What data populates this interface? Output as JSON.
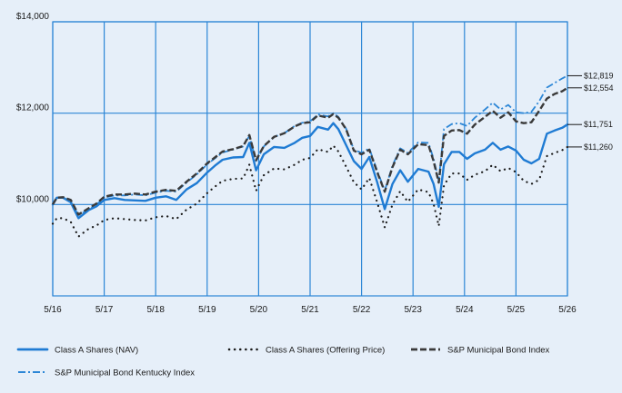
{
  "chart_data": {
    "type": "line",
    "title": "",
    "xlabel": "",
    "ylabel": "",
    "ylim": [
      8000,
      14000
    ],
    "y_ticks": [
      {
        "value": 14000,
        "label": "$14,000"
      },
      {
        "value": 12000,
        "label": "$12,000"
      },
      {
        "value": 10000,
        "label": "$10,000"
      }
    ],
    "x_range": [
      0,
      10
    ],
    "x_tick_labels": [
      "5/16",
      "5/17",
      "5/18",
      "5/19",
      "5/20",
      "5/21",
      "5/22",
      "5/23",
      "5/24",
      "5/25",
      "5/26"
    ],
    "grid": true,
    "legend_position": "bottom",
    "colors": {
      "background": "#E6EFF9",
      "grid": "#2C86D6",
      "class_a_nav": "#1F7BD3",
      "offering_price": "#1a1a1a",
      "municipal_index": "#3A3A3A",
      "kentucky_index": "#2C86D6",
      "leader": "#1a1a1a"
    },
    "series": [
      {
        "name": "Class A Shares (NAV)",
        "style": "solid",
        "end_label": "$11,751",
        "points": [
          [
            0,
            10000
          ],
          [
            0.08,
            10150
          ],
          [
            0.2,
            10150
          ],
          [
            0.35,
            10050
          ],
          [
            0.5,
            9700
          ],
          [
            0.7,
            9880
          ],
          [
            0.85,
            9960
          ],
          [
            1.0,
            10100
          ],
          [
            1.2,
            10140
          ],
          [
            1.4,
            10100
          ],
          [
            1.6,
            10090
          ],
          [
            1.8,
            10080
          ],
          [
            2.0,
            10150
          ],
          [
            2.2,
            10180
          ],
          [
            2.4,
            10100
          ],
          [
            2.6,
            10330
          ],
          [
            2.8,
            10470
          ],
          [
            3.0,
            10700
          ],
          [
            3.15,
            10850
          ],
          [
            3.3,
            10980
          ],
          [
            3.5,
            11030
          ],
          [
            3.7,
            11040
          ],
          [
            3.82,
            11350
          ],
          [
            3.95,
            10750
          ],
          [
            4.1,
            11100
          ],
          [
            4.3,
            11260
          ],
          [
            4.5,
            11240
          ],
          [
            4.7,
            11350
          ],
          [
            4.85,
            11460
          ],
          [
            5.0,
            11500
          ],
          [
            5.15,
            11700
          ],
          [
            5.35,
            11640
          ],
          [
            5.45,
            11780
          ],
          [
            5.55,
            11650
          ],
          [
            5.7,
            11300
          ],
          [
            5.85,
            10950
          ],
          [
            6.0,
            10780
          ],
          [
            6.15,
            11040
          ],
          [
            6.3,
            10500
          ],
          [
            6.45,
            9900
          ],
          [
            6.6,
            10450
          ],
          [
            6.75,
            10750
          ],
          [
            6.9,
            10500
          ],
          [
            7.1,
            10780
          ],
          [
            7.3,
            10720
          ],
          [
            7.4,
            10450
          ],
          [
            7.5,
            9950
          ],
          [
            7.6,
            10880
          ],
          [
            7.75,
            11150
          ],
          [
            7.9,
            11150
          ],
          [
            8.05,
            11000
          ],
          [
            8.2,
            11120
          ],
          [
            8.4,
            11200
          ],
          [
            8.55,
            11350
          ],
          [
            8.7,
            11200
          ],
          [
            8.85,
            11270
          ],
          [
            9.0,
            11180
          ],
          [
            9.15,
            10980
          ],
          [
            9.3,
            10900
          ],
          [
            9.45,
            11000
          ],
          [
            9.6,
            11550
          ],
          [
            9.75,
            11620
          ],
          [
            9.9,
            11680
          ],
          [
            10.0,
            11751
          ]
        ]
      },
      {
        "name": "Class A Shares (Offering Price)",
        "style": "dotted",
        "end_label": "$11,260",
        "points": [
          [
            0,
            9580
          ],
          [
            0.08,
            9700
          ],
          [
            0.2,
            9700
          ],
          [
            0.35,
            9620
          ],
          [
            0.5,
            9300
          ],
          [
            0.7,
            9470
          ],
          [
            0.85,
            9540
          ],
          [
            1.0,
            9660
          ],
          [
            1.2,
            9700
          ],
          [
            1.4,
            9680
          ],
          [
            1.6,
            9660
          ],
          [
            1.8,
            9650
          ],
          [
            2.0,
            9720
          ],
          [
            2.2,
            9750
          ],
          [
            2.4,
            9680
          ],
          [
            2.6,
            9890
          ],
          [
            2.8,
            10020
          ],
          [
            3.0,
            10250
          ],
          [
            3.15,
            10390
          ],
          [
            3.3,
            10520
          ],
          [
            3.5,
            10560
          ],
          [
            3.7,
            10570
          ],
          [
            3.82,
            10870
          ],
          [
            3.95,
            10300
          ],
          [
            4.1,
            10640
          ],
          [
            4.3,
            10790
          ],
          [
            4.5,
            10770
          ],
          [
            4.7,
            10870
          ],
          [
            4.85,
            10980
          ],
          [
            5.0,
            11020
          ],
          [
            5.15,
            11210
          ],
          [
            5.35,
            11150
          ],
          [
            5.45,
            11290
          ],
          [
            5.55,
            11160
          ],
          [
            5.7,
            10830
          ],
          [
            5.85,
            10490
          ],
          [
            6.0,
            10330
          ],
          [
            6.15,
            10580
          ],
          [
            6.3,
            10060
          ],
          [
            6.45,
            9500
          ],
          [
            6.6,
            10000
          ],
          [
            6.75,
            10290
          ],
          [
            6.9,
            10060
          ],
          [
            7.1,
            10330
          ],
          [
            7.3,
            10270
          ],
          [
            7.4,
            10010
          ],
          [
            7.5,
            9530
          ],
          [
            7.6,
            10420
          ],
          [
            7.75,
            10680
          ],
          [
            7.9,
            10680
          ],
          [
            8.05,
            10540
          ],
          [
            8.2,
            10650
          ],
          [
            8.4,
            10730
          ],
          [
            8.55,
            10870
          ],
          [
            8.7,
            10730
          ],
          [
            8.85,
            10800
          ],
          [
            9.0,
            10710
          ],
          [
            9.15,
            10520
          ],
          [
            9.3,
            10450
          ],
          [
            9.45,
            10540
          ],
          [
            9.6,
            11060
          ],
          [
            9.75,
            11130
          ],
          [
            9.9,
            11190
          ],
          [
            10.0,
            11260
          ]
        ]
      },
      {
        "name": "S&P Municipal Bond Index",
        "style": "dashed",
        "end_label": "$12,554",
        "points": [
          [
            0,
            10000
          ],
          [
            0.08,
            10150
          ],
          [
            0.2,
            10160
          ],
          [
            0.35,
            10100
          ],
          [
            0.5,
            9780
          ],
          [
            0.7,
            9920
          ],
          [
            0.85,
            10020
          ],
          [
            1.0,
            10170
          ],
          [
            1.2,
            10220
          ],
          [
            1.4,
            10220
          ],
          [
            1.6,
            10240
          ],
          [
            1.8,
            10220
          ],
          [
            2.0,
            10280
          ],
          [
            2.2,
            10320
          ],
          [
            2.4,
            10300
          ],
          [
            2.6,
            10500
          ],
          [
            2.8,
            10680
          ],
          [
            3.0,
            10900
          ],
          [
            3.15,
            11030
          ],
          [
            3.3,
            11160
          ],
          [
            3.5,
            11210
          ],
          [
            3.7,
            11280
          ],
          [
            3.82,
            11520
          ],
          [
            3.95,
            10970
          ],
          [
            4.1,
            11280
          ],
          [
            4.3,
            11480
          ],
          [
            4.5,
            11560
          ],
          [
            4.7,
            11710
          ],
          [
            4.85,
            11780
          ],
          [
            5.0,
            11800
          ],
          [
            5.15,
            11950
          ],
          [
            5.35,
            11900
          ],
          [
            5.45,
            11980
          ],
          [
            5.55,
            11900
          ],
          [
            5.7,
            11650
          ],
          [
            5.85,
            11180
          ],
          [
            6.0,
            11100
          ],
          [
            6.15,
            11200
          ],
          [
            6.3,
            10720
          ],
          [
            6.45,
            10280
          ],
          [
            6.6,
            10820
          ],
          [
            6.75,
            11200
          ],
          [
            6.9,
            11100
          ],
          [
            7.1,
            11320
          ],
          [
            7.3,
            11300
          ],
          [
            7.4,
            10950
          ],
          [
            7.5,
            10480
          ],
          [
            7.6,
            11500
          ],
          [
            7.75,
            11620
          ],
          [
            7.9,
            11630
          ],
          [
            8.05,
            11550
          ],
          [
            8.2,
            11750
          ],
          [
            8.4,
            11920
          ],
          [
            8.55,
            12050
          ],
          [
            8.7,
            11900
          ],
          [
            8.85,
            12020
          ],
          [
            9.0,
            11820
          ],
          [
            9.15,
            11780
          ],
          [
            9.3,
            11800
          ],
          [
            9.45,
            12050
          ],
          [
            9.6,
            12320
          ],
          [
            9.75,
            12420
          ],
          [
            9.9,
            12480
          ],
          [
            10.0,
            12554
          ]
        ]
      },
      {
        "name": "S&P Municipal Bond Kentucky Index",
        "style": "dash-dot",
        "end_label": "$12,819",
        "points": [
          [
            0,
            10000
          ],
          [
            0.08,
            10140
          ],
          [
            0.2,
            10150
          ],
          [
            0.35,
            10080
          ],
          [
            0.5,
            9760
          ],
          [
            0.7,
            9900
          ],
          [
            0.85,
            10000
          ],
          [
            1.0,
            10150
          ],
          [
            1.2,
            10200
          ],
          [
            1.4,
            10200
          ],
          [
            1.6,
            10220
          ],
          [
            1.8,
            10200
          ],
          [
            2.0,
            10260
          ],
          [
            2.2,
            10300
          ],
          [
            2.4,
            10280
          ],
          [
            2.6,
            10480
          ],
          [
            2.8,
            10660
          ],
          [
            3.0,
            10880
          ],
          [
            3.15,
            11010
          ],
          [
            3.3,
            11140
          ],
          [
            3.5,
            11200
          ],
          [
            3.7,
            11270
          ],
          [
            3.82,
            11500
          ],
          [
            3.95,
            10950
          ],
          [
            4.1,
            11270
          ],
          [
            4.3,
            11480
          ],
          [
            4.5,
            11560
          ],
          [
            4.7,
            11720
          ],
          [
            4.85,
            11790
          ],
          [
            5.0,
            11820
          ],
          [
            5.15,
            11970
          ],
          [
            5.35,
            11930
          ],
          [
            5.45,
            12000
          ],
          [
            5.55,
            11920
          ],
          [
            5.7,
            11660
          ],
          [
            5.85,
            11200
          ],
          [
            6.0,
            11130
          ],
          [
            6.15,
            11230
          ],
          [
            6.3,
            10750
          ],
          [
            6.45,
            10300
          ],
          [
            6.6,
            10850
          ],
          [
            6.75,
            11230
          ],
          [
            6.9,
            11130
          ],
          [
            7.1,
            11360
          ],
          [
            7.3,
            11350
          ],
          [
            7.4,
            11000
          ],
          [
            7.5,
            10520
          ],
          [
            7.6,
            11650
          ],
          [
            7.75,
            11760
          ],
          [
            7.9,
            11780
          ],
          [
            8.05,
            11720
          ],
          [
            8.2,
            11900
          ],
          [
            8.4,
            12080
          ],
          [
            8.55,
            12230
          ],
          [
            8.7,
            12080
          ],
          [
            8.85,
            12180
          ],
          [
            9.0,
            12020
          ],
          [
            9.15,
            12000
          ],
          [
            9.3,
            12030
          ],
          [
            9.45,
            12260
          ],
          [
            9.6,
            12560
          ],
          [
            9.75,
            12660
          ],
          [
            9.9,
            12760
          ],
          [
            10.0,
            12819
          ]
        ]
      }
    ]
  }
}
